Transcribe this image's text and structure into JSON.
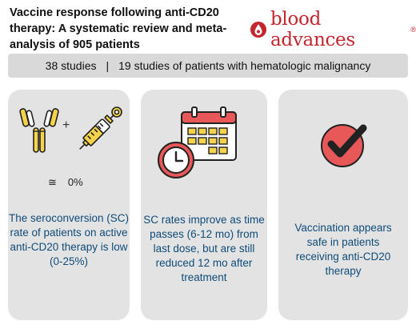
{
  "header": {
    "title": "Vaccine response following anti-CD20 therapy: A systematic review and meta-analysis of 905 patients",
    "logo_text": "blood advances",
    "logo_reg": "®"
  },
  "banner": {
    "left": "38 studies",
    "separator": "|",
    "right": "19 studies of patients with hematologic malignancy"
  },
  "panels": [
    {
      "icons": [
        "antibody-icon",
        "syringe-icon"
      ],
      "plus": "+",
      "approx_symbol": "≅",
      "approx_value": "0%",
      "text": "The seroconversion (SC) rate of patients on active anti-CD20 therapy is low (0-25%)"
    },
    {
      "icons": [
        "calendar-icon",
        "clock-icon"
      ],
      "text": "SC rates improve as time passes (6-12 mo) from last dose, but are still reduced 12 mo after treatment"
    },
    {
      "icons": [
        "check-circle-icon"
      ],
      "text": "Vaccination appears safe in patients receiving anti-CD20 therapy"
    }
  ],
  "colors": {
    "brand_red": "#c3262e",
    "text_blue": "#0f4c7a",
    "panel_gray": "#e3e3e3",
    "banner_gray": "#d9d9d9",
    "icon_yellow": "#f5d34a",
    "icon_red": "#e85858"
  }
}
